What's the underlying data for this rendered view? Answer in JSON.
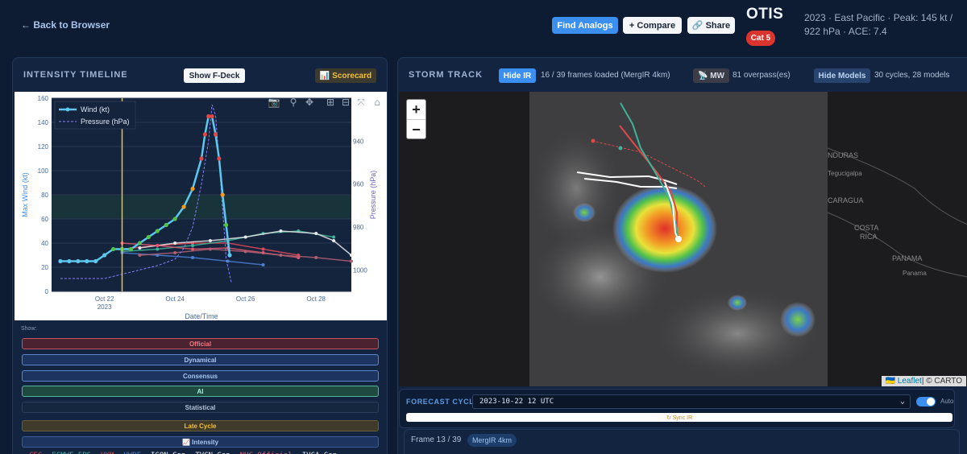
{
  "header": {
    "back_label": "← Back to Browser",
    "find_analogs": "Find Analogs",
    "compare": "+ Compare",
    "share": "🔗 Share",
    "storm_name": "OTIS",
    "category": "Cat 5",
    "meta": "2023 · East Pacific · Peak: 145 kt / 922 hPa · ACE: 7.4"
  },
  "intensity": {
    "title": "INTENSITY TIMELINE",
    "show_fdeck": "Show F-Deck",
    "scorecard": "📊 Scorecard",
    "show_label": "Show:",
    "filters": {
      "official": "Official",
      "dynamical": "Dynamical",
      "consensus": "Consensus",
      "ai": "AI",
      "statistical": "Statistical",
      "late_cycle": "Late Cycle",
      "intensity": "📈 Intensity"
    },
    "model_legend": [
      {
        "label": "CEC",
        "color": "#e04848"
      },
      {
        "label": "ECMWF-EPS",
        "color": "#3fb39a"
      },
      {
        "label": "UKM",
        "color": "#e04848"
      },
      {
        "label": "HWRF",
        "color": "#4a7fd0"
      },
      {
        "label": "ICON-Gen",
        "color": "#f0f0f0"
      },
      {
        "label": "TVCN-Gen",
        "color": "#f0f0f0"
      },
      {
        "label": "NHC-Official",
        "color": "#e06070"
      },
      {
        "label": "IVCA-Gen",
        "color": "#f0f0f0"
      }
    ]
  },
  "chart_data": {
    "type": "line",
    "xlabel": "Date/Time",
    "ylabel": "Max Wind (kt)",
    "y2label": "Pressure (hPa)",
    "ylim": [
      0,
      160
    ],
    "y2lim": [
      1010,
      920
    ],
    "y_ticks": [
      0,
      20,
      40,
      60,
      80,
      100,
      120,
      140,
      160
    ],
    "y2_ticks": [
      940,
      960,
      980,
      1000
    ],
    "x_ticks": [
      {
        "t": 1.0,
        "label": "Oct 22",
        "sub": "2023"
      },
      {
        "t": 3.0,
        "label": "Oct 24",
        "sub": ""
      },
      {
        "t": 5.0,
        "label": "Oct 26",
        "sub": ""
      },
      {
        "t": 7.0,
        "label": "Oct 28",
        "sub": ""
      }
    ],
    "xlim": [
      -0.5,
      8.0
    ],
    "current_t": 1.5,
    "legend": [
      "Wind (kt)",
      "Pressure (hPa)"
    ],
    "wind": {
      "t": [
        -0.25,
        0.0,
        0.25,
        0.5,
        0.75,
        1.0,
        1.25,
        1.5,
        1.75,
        2.0,
        2.25,
        2.5,
        2.75,
        3.0,
        3.25,
        3.5,
        3.75,
        3.85,
        3.95,
        4.05,
        4.15,
        4.25,
        4.35,
        4.45,
        4.55
      ],
      "values": [
        25,
        25,
        25,
        25,
        25,
        30,
        35,
        35,
        35,
        40,
        45,
        50,
        55,
        60,
        70,
        85,
        110,
        130,
        145,
        145,
        130,
        110,
        80,
        55,
        30
      ]
    },
    "pressure": {
      "t": [
        -0.25,
        0.5,
        1.0,
        1.5,
        2.0,
        2.5,
        3.0,
        3.25,
        3.5,
        3.75,
        3.95,
        4.05,
        4.15,
        4.3,
        4.45,
        4.6
      ],
      "values": [
        1004,
        1004,
        1004,
        1002,
        1000,
        998,
        995,
        990,
        980,
        960,
        940,
        923,
        928,
        960,
        995,
        1006
      ]
    },
    "series": [
      {
        "name": "NHC-Official",
        "color": "#e04858",
        "t": [
          1.5,
          2.5,
          3.5,
          4.5,
          5.5,
          6.5
        ],
        "values": [
          35,
          38,
          40,
          40,
          35,
          30
        ]
      },
      {
        "name": "ECMWF-EPS",
        "color": "#3fb39a",
        "t": [
          1.5,
          2.5,
          3.5,
          4.5,
          5.5,
          6.5,
          7.5
        ],
        "values": [
          33,
          35,
          38,
          42,
          48,
          50,
          45
        ]
      },
      {
        "name": "ICON-Gen",
        "color": "#e8e8e8",
        "t": [
          2.0,
          3.0,
          4.0,
          5.0,
          6.0,
          7.0,
          7.5,
          8.0
        ],
        "values": [
          36,
          40,
          42,
          45,
          50,
          48,
          42,
          30
        ]
      },
      {
        "name": "HWRF",
        "color": "#4a7fd0",
        "t": [
          1.5,
          2.5,
          3.5,
          4.5,
          5.5
        ],
        "values": [
          32,
          30,
          28,
          25,
          22
        ]
      },
      {
        "name": "UKM",
        "color": "#e05870",
        "t": [
          1.5,
          2.5,
          3.5,
          4.5,
          5.5,
          6.5
        ],
        "values": [
          40,
          38,
          35,
          36,
          32,
          28
        ]
      },
      {
        "name": "Statistical",
        "color": "#b06070",
        "t": [
          2.0,
          3.0,
          4.0,
          5.0,
          6.0,
          7.0,
          8.0
        ],
        "values": [
          30,
          32,
          35,
          33,
          30,
          28,
          25
        ]
      }
    ]
  },
  "storm_track": {
    "title": "STORM TRACK",
    "hide_ir": "Hide IR",
    "ir_info": "16 / 39 frames loaded (MergIR 4km)",
    "mw": "📡 MW",
    "mw_info": "81 overpass(es)",
    "hide_models": "Hide Models",
    "models_info": "30 cycles, 28 models",
    "zoom_in": "+",
    "zoom_out": "−",
    "map_labels": [
      "NDURAS",
      "Tegucigalpa",
      "CARAGUA",
      "COSTA",
      "RICA",
      "PANAMA",
      "Panama"
    ],
    "attribution_link": "🇺🇦 Leaflet",
    "attribution_text": " | © CARTO"
  },
  "forecast": {
    "label": "FORECAST CYCLE",
    "selected": "2023-10-22 12 UTC",
    "auto": "Auto",
    "sync": "↻ Sync IR"
  },
  "frame": {
    "label": "Frame 13 / 39",
    "product": "MergIR 4km"
  }
}
